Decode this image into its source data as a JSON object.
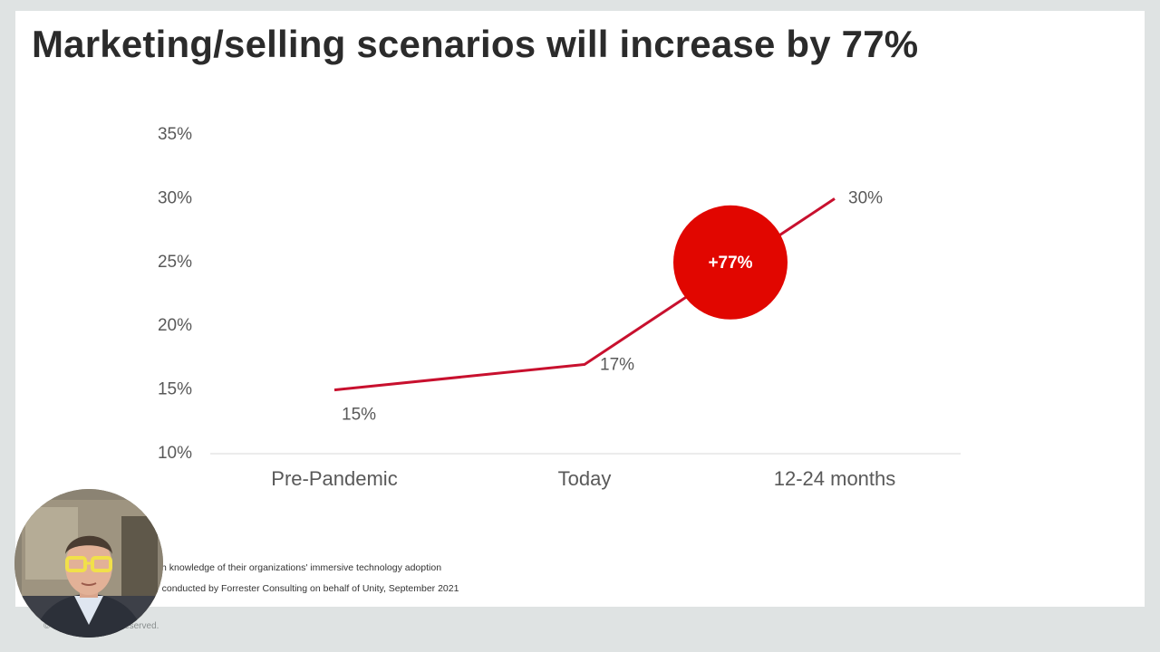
{
  "slide": {
    "title": "Marketing/selling scenarios will increase by 77%",
    "footnote_1": "aders with knowledge of their organizations' immersive technology adoption",
    "footnote_2": "ed study conducted by Forrester Consulting on behalf of Unity, September 2021",
    "copyright": "© ch, Inc. All rights reserved."
  },
  "chart_data": {
    "type": "line",
    "categories": [
      "Pre-Pandemic",
      "Today",
      "12-24 months"
    ],
    "series": [
      {
        "values": [
          15,
          17,
          30
        ],
        "data_labels": [
          "15%",
          "17%",
          "30%"
        ]
      }
    ],
    "ylim": [
      10,
      35
    ],
    "yticks": [
      10,
      15,
      20,
      25,
      30,
      35
    ],
    "ytick_labels": [
      "10%",
      "15%",
      "20%",
      "25%",
      "30%",
      "35%"
    ],
    "annotation": "+77%",
    "grid": false,
    "line_color": "#c8102e",
    "badge_color": "#e10600"
  }
}
